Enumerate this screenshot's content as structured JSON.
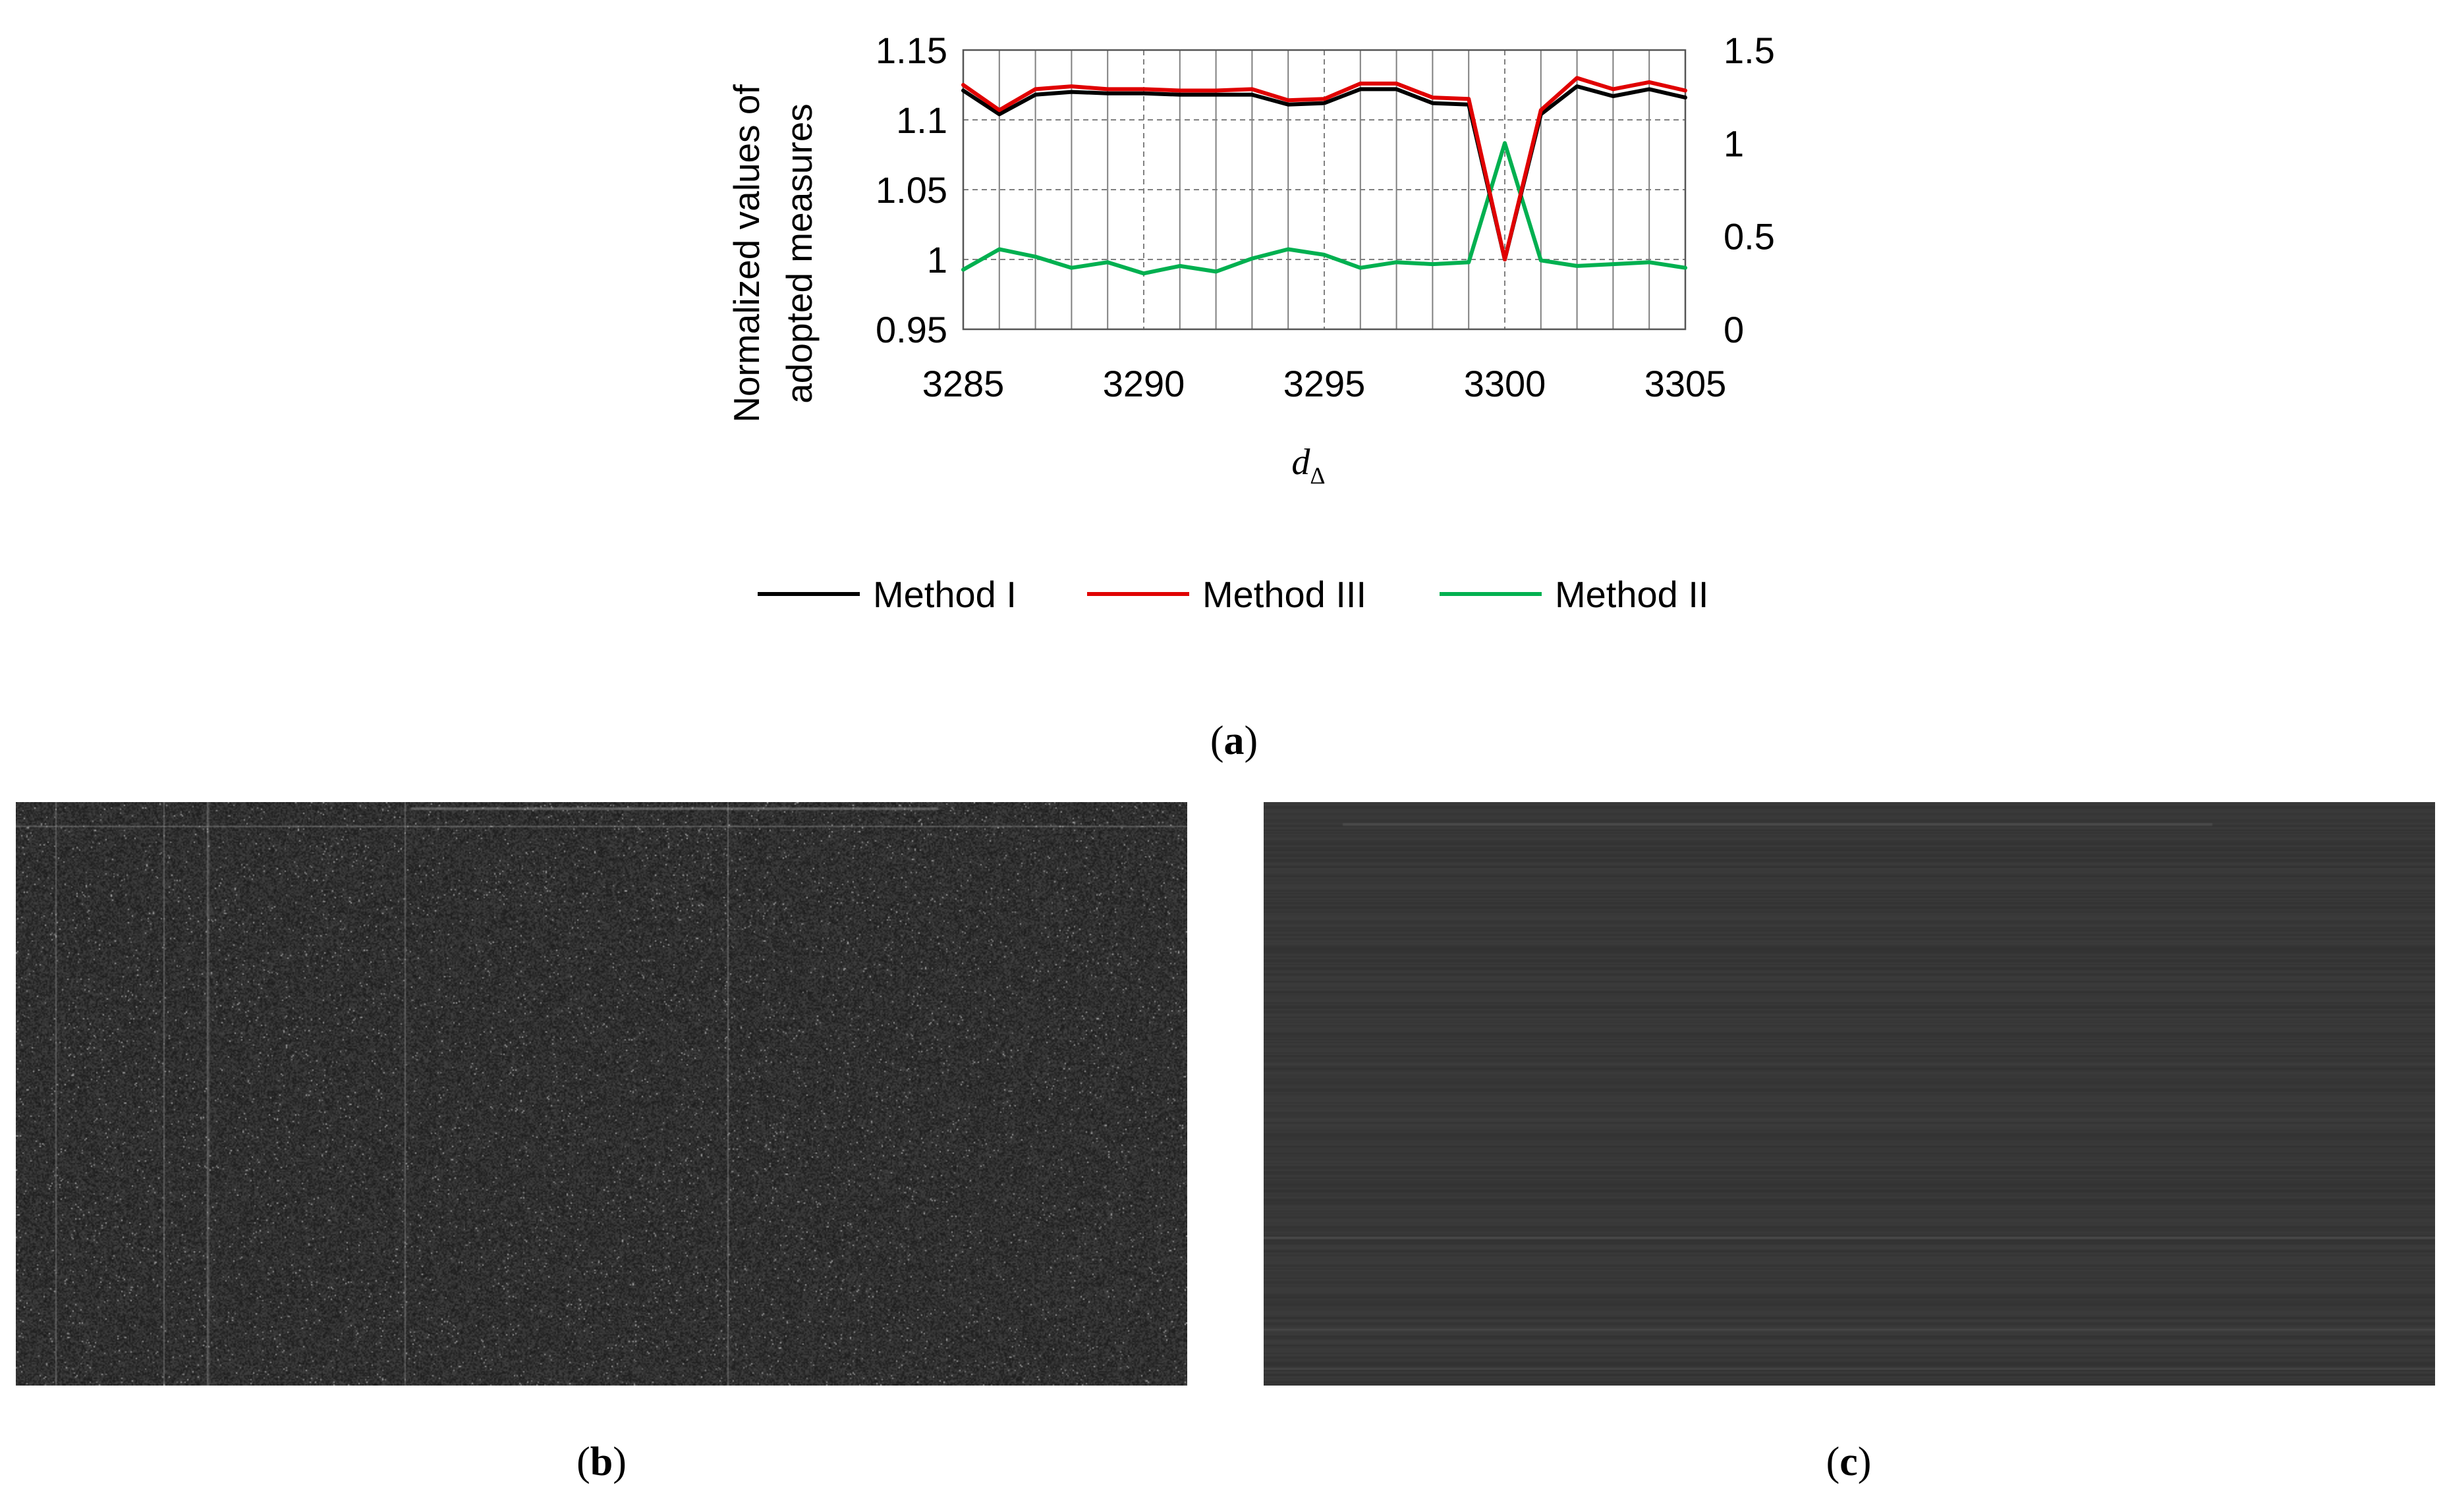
{
  "chart_data": {
    "type": "line",
    "title": "",
    "xlabel": "d",
    "xlabel_subscript": "Δ",
    "ylabel_lines": [
      "Normalized values of",
      "adopted measures"
    ],
    "x": [
      3285,
      3286,
      3287,
      3288,
      3289,
      3290,
      3291,
      3292,
      3293,
      3294,
      3295,
      3296,
      3297,
      3298,
      3299,
      3300,
      3301,
      3302,
      3303,
      3304,
      3305
    ],
    "xlim": [
      3285,
      3305
    ],
    "xticks": [
      3285,
      3290,
      3295,
      3300,
      3305
    ],
    "xtick_labels": [
      "3285",
      "3290",
      "3295",
      "3300",
      "3305"
    ],
    "ylim_left": [
      0.95,
      1.15
    ],
    "yticks_left": [
      0.95,
      1,
      1.05,
      1.1,
      1.15
    ],
    "ytick_labels_left": [
      "0.95",
      "1",
      "1.05",
      "1.1",
      "1.15"
    ],
    "ylim_right": [
      0,
      1.5
    ],
    "yticks_right": [
      0,
      0.5,
      1,
      1.5
    ],
    "ytick_labels_right": [
      "0",
      "0.5",
      "1",
      "1.5"
    ],
    "grid": true,
    "legend_position": "bottom",
    "series": [
      {
        "name": "Method I",
        "axis": "left",
        "color": "#000000",
        "values": [
          1.121,
          1.104,
          1.118,
          1.12,
          1.119,
          1.119,
          1.118,
          1.118,
          1.118,
          1.111,
          1.112,
          1.122,
          1.122,
          1.112,
          1.111,
          1.0,
          1.104,
          1.124,
          1.117,
          1.122,
          1.116
        ]
      },
      {
        "name": "Method III",
        "axis": "left",
        "color": "#e00000",
        "values": [
          1.125,
          1.107,
          1.122,
          1.124,
          1.122,
          1.122,
          1.121,
          1.121,
          1.122,
          1.114,
          1.115,
          1.126,
          1.126,
          1.116,
          1.115,
          1.0,
          1.107,
          1.13,
          1.122,
          1.127,
          1.121
        ]
      },
      {
        "name": "Method II",
        "axis": "right",
        "color": "#00b050",
        "values": [
          0.32,
          0.43,
          0.39,
          0.33,
          0.36,
          0.3,
          0.34,
          0.31,
          0.38,
          0.43,
          0.4,
          0.33,
          0.36,
          0.35,
          0.36,
          1.0,
          0.37,
          0.34,
          0.35,
          0.36,
          0.33
        ]
      }
    ]
  },
  "captions": {
    "a": "a",
    "b": "b",
    "c": "c"
  },
  "colors": {
    "panel_background": "#2a2a2a",
    "grid": "#808080"
  }
}
